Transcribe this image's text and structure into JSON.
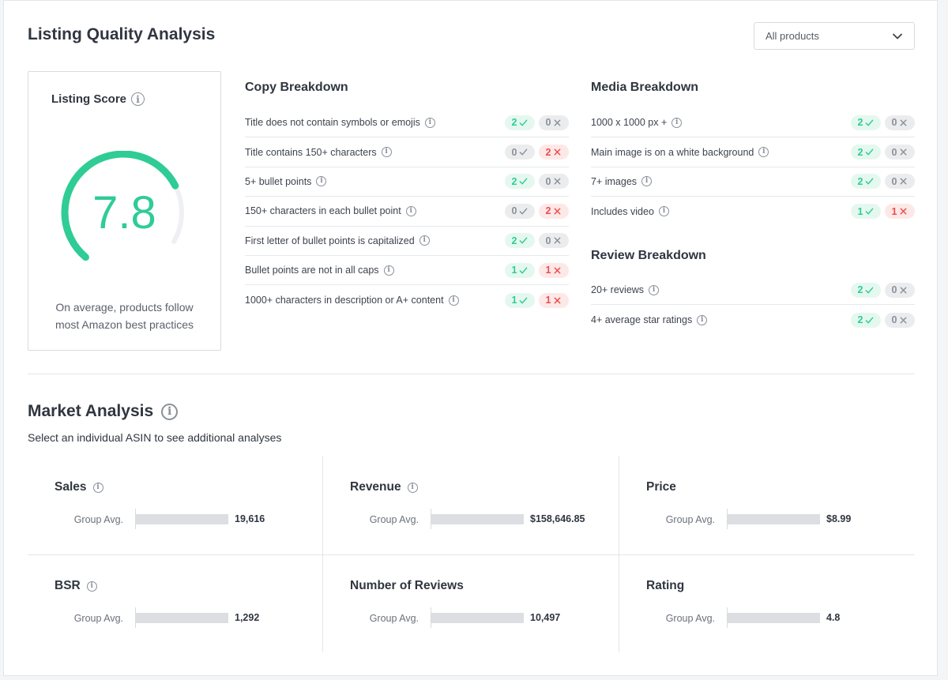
{
  "listing_quality": {
    "title": "Listing Quality Analysis",
    "filter": {
      "selected": "All products"
    },
    "score": {
      "title": "Listing Score",
      "value": "7.8",
      "gauge_fraction": 0.78,
      "color": "#2fcc96",
      "note_line1": "On average, products follow",
      "note_line2": "most Amazon best practices"
    },
    "copy": {
      "title": "Copy Breakdown",
      "items": [
        {
          "label": "Title does not contain symbols or emojis",
          "pass": "2",
          "fail": "0",
          "pass_active": true,
          "fail_active": false
        },
        {
          "label": "Title contains 150+ characters",
          "pass": "0",
          "fail": "2",
          "pass_active": false,
          "fail_active": true
        },
        {
          "label": "5+ bullet points",
          "pass": "2",
          "fail": "0",
          "pass_active": true,
          "fail_active": false
        },
        {
          "label": "150+ characters in each bullet point",
          "pass": "0",
          "fail": "2",
          "pass_active": false,
          "fail_active": true
        },
        {
          "label": "First letter of bullet points is capitalized",
          "pass": "2",
          "fail": "0",
          "pass_active": true,
          "fail_active": false
        },
        {
          "label": "Bullet points are not in all caps",
          "pass": "1",
          "fail": "1",
          "pass_active": true,
          "fail_active": true
        },
        {
          "label": "1000+ characters in description or A+ content",
          "pass": "1",
          "fail": "1",
          "pass_active": true,
          "fail_active": true
        }
      ]
    },
    "media": {
      "title": "Media Breakdown",
      "items": [
        {
          "label": "1000 x 1000 px +",
          "pass": "2",
          "fail": "0",
          "pass_active": true,
          "fail_active": false
        },
        {
          "label": "Main image is on a white background",
          "pass": "2",
          "fail": "0",
          "pass_active": true,
          "fail_active": false
        },
        {
          "label": "7+ images",
          "pass": "2",
          "fail": "0",
          "pass_active": true,
          "fail_active": false
        },
        {
          "label": "Includes video",
          "pass": "1",
          "fail": "1",
          "pass_active": true,
          "fail_active": true
        }
      ]
    },
    "review": {
      "title": "Review Breakdown",
      "items": [
        {
          "label": "20+ reviews",
          "pass": "2",
          "fail": "0",
          "pass_active": true,
          "fail_active": false
        },
        {
          "label": "4+ average star ratings",
          "pass": "2",
          "fail": "0",
          "pass_active": true,
          "fail_active": false
        }
      ]
    }
  },
  "market": {
    "title": "Market Analysis",
    "subtitle": "Select an individual ASIN to see additional analyses",
    "metrics": [
      {
        "title": "Sales",
        "has_info": true,
        "label": "Group Avg.",
        "value": "19,616"
      },
      {
        "title": "Revenue",
        "has_info": true,
        "label": "Group Avg.",
        "value": "$158,646.85"
      },
      {
        "title": "Price",
        "has_info": false,
        "label": "Group Avg.",
        "value": "$8.99"
      },
      {
        "title": "BSR",
        "has_info": true,
        "label": "Group Avg.",
        "value": "1,292"
      },
      {
        "title": "Number of Reviews",
        "has_info": false,
        "label": "Group Avg.",
        "value": "10,497"
      },
      {
        "title": "Rating",
        "has_info": false,
        "label": "Group Avg.",
        "value": "4.8"
      }
    ]
  }
}
